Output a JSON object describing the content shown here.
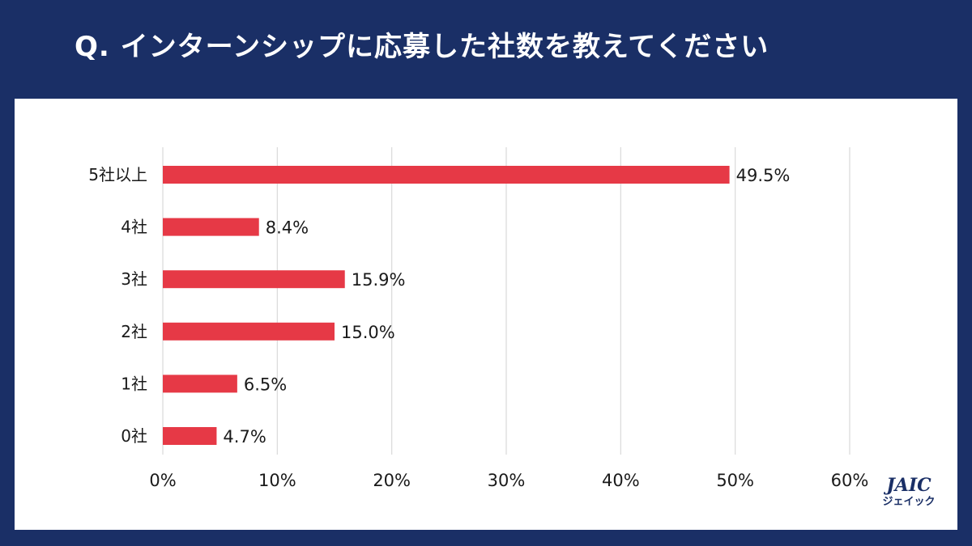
{
  "header": {
    "title": "Q. インターンシップに応募した社数を教えてください"
  },
  "logo": {
    "text": "JAIC",
    "subtext": "ジェイック"
  },
  "colors": {
    "background": "#1a2f66",
    "bar": "#e63946",
    "panel": "#ffffff"
  },
  "chart_data": {
    "type": "bar",
    "orientation": "horizontal",
    "categories": [
      "5社以上",
      "4社",
      "3社",
      "2社",
      "1社",
      "0社"
    ],
    "values": [
      49.5,
      8.4,
      15.9,
      15.0,
      6.5,
      4.7
    ],
    "value_labels": [
      "49.5%",
      "8.4%",
      "15.9%",
      "15.0%",
      "6.5%",
      "4.7%"
    ],
    "xlim": [
      0,
      60
    ],
    "xticks": [
      0,
      10,
      20,
      30,
      40,
      50,
      60
    ],
    "xtick_labels": [
      "0%",
      "10%",
      "20%",
      "30%",
      "40%",
      "50%",
      "60%"
    ],
    "grid": true,
    "legend": "none"
  }
}
